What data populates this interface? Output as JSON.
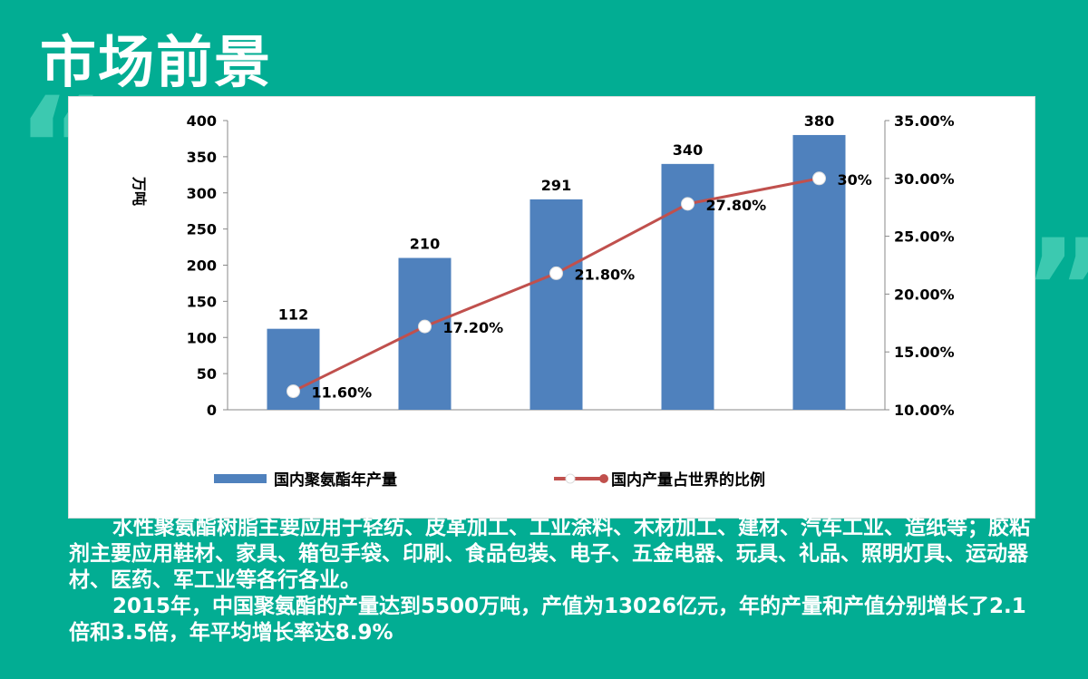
{
  "title": "市场前景",
  "chart_data": {
    "type": "bar+line",
    "categories": [
      "",
      "",
      "",
      "",
      ""
    ],
    "ylabel": "万吨",
    "ylim": [
      0,
      400
    ],
    "yticks": [
      "0",
      "50",
      "100",
      "150",
      "200",
      "250",
      "300",
      "350",
      "400"
    ],
    "y2lim": [
      0.1,
      0.35
    ],
    "y2ticks": [
      "10.00%",
      "15.00%",
      "20.00%",
      "25.00%",
      "30.00%",
      "35.00%"
    ],
    "series": [
      {
        "name": "国内聚氨酯年产量",
        "type": "bar",
        "values": [
          112,
          210,
          291,
          340,
          380
        ],
        "labels": [
          "112",
          "210",
          "291",
          "340",
          "380"
        ],
        "color": "#4f81bd"
      },
      {
        "name": "国内产量占世界的比例",
        "type": "line",
        "axis": "right",
        "values": [
          0.116,
          0.172,
          0.218,
          0.278,
          0.3
        ],
        "labels": [
          "11.60%",
          "17.20%",
          "21.80%",
          "27.80%",
          "30%"
        ],
        "color": "#c0504d"
      }
    ],
    "grid": false,
    "legend": "bottom"
  },
  "paragraphs": [
    "水性聚氨酯树脂主要应用于轻纺、皮革加工、工业涂料、木材加工、建材、汽车工业、造纸等；胶粘剂主要应用鞋材、家具、箱包手袋、印刷、食品包装、电子、五金电器、玩具、礼品、照明灯具、运动器材、医药、军工业等各行各业。",
    "2015年，中国聚氨酯的产量达到5500万吨，产值为13026亿元，年的产量和产值分别增长了2.1倍和3.5倍，年平均增长率达8.9%"
  ]
}
